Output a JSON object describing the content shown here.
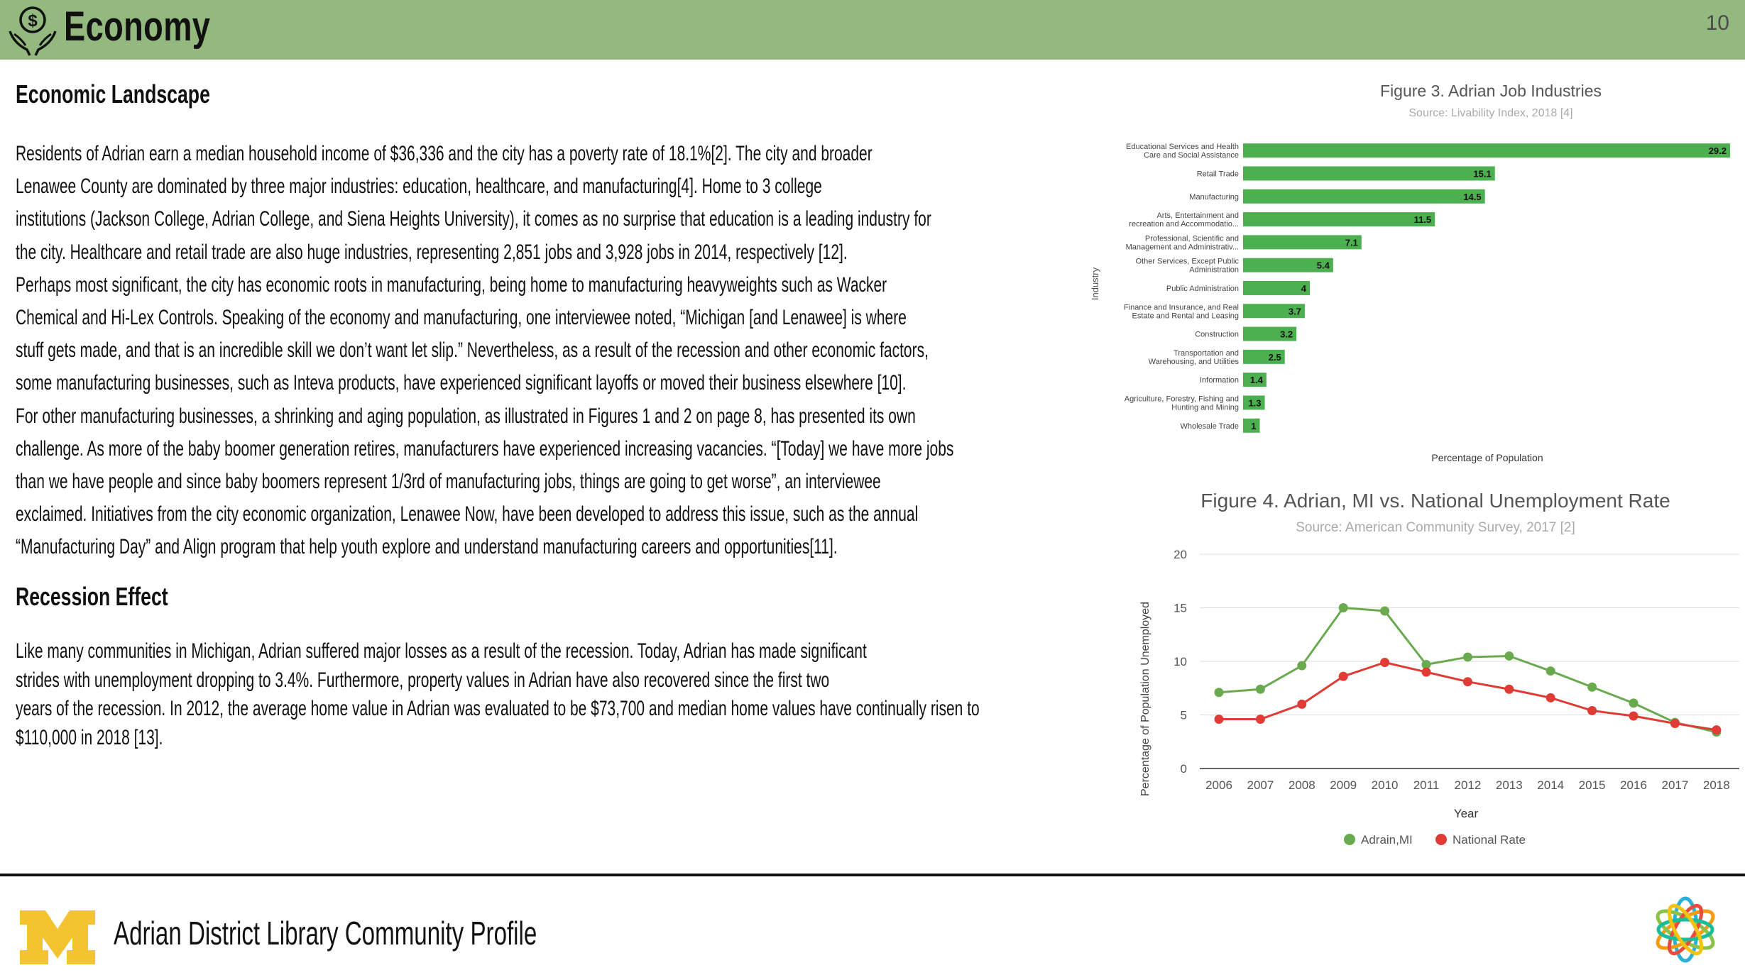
{
  "header": {
    "title": "Economy",
    "page_number": "10",
    "icon": "money-hands-icon"
  },
  "sections": {
    "economic_landscape": {
      "heading": "Economic Landscape",
      "paragraph": "Residents of Adrian earn a median household income of $36,336 and the city has a poverty rate of 18.1%[2].  The city and broader\nLenawee County are dominated by three major industries: education, healthcare, and manufacturing[4]. Home to 3 college\ninstitutions (Jackson College, Adrian College, and Siena Heights University), it comes as no surprise that education is a leading industry for\nthe city.  Healthcare and retail trade are also huge industries, representing 2,851 jobs and 3,928 jobs in 2014, respectively [12].\nPerhaps most significant, the city has economic roots in manufacturing, being home to manufacturing heavyweights such as Wacker\nChemical and Hi-Lex Controls. Speaking of the economy and manufacturing, one interviewee noted, “Michigan [and Lenawee] is where\nstuff gets made, and that is an incredible skill we don’t want let slip.”  Nevertheless, as a result of the recession and other economic factors,\nsome manufacturing businesses, such as Inteva products, have experienced significant layoffs or moved their business elsewhere [10].\nFor other manufacturing businesses, a shrinking and aging population, as illustrated in Figures 1 and 2 on page 8, has presented its own\nchallenge. As more of the baby boomer generation retires, manufacturers have experienced increasing vacancies.  “[Today] we have more jobs\nthan we have people and since baby boomers represent 1/3rd of manufacturing jobs, things are going to get worse”, an interviewee\nexclaimed. Initiatives from the city economic organization, Lenawee Now, have been developed to address this issue, such as the annual\n“Manufacturing Day” and Align program that help youth explore and understand manufacturing careers and opportunities[11]."
    },
    "recession_effect": {
      "heading": "Recession Effect",
      "paragraph": "Like many communities in Michigan, Adrian suffered major losses as a result of the recession. Today, Adrian has made significant\nstrides with unemployment dropping to 3.4%.  Furthermore, property values in Adrian have also recovered since the first two\nyears of the recession.  In 2012, the average home value in Adrian was evaluated to be $73,700 and median home values have continually risen to\n$110,000 in 2018 [13]."
    }
  },
  "chart_data": [
    {
      "type": "bar",
      "orientation": "horizontal",
      "title": "Figure 3. Adrian Job Industries",
      "subtitle": "Source: Livability Index, 2018 [4]",
      "xlabel": "Percentage of Population",
      "ylabel": "Industry",
      "color": "#4caf50",
      "xlim": [
        0,
        29.2
      ],
      "categories": [
        [
          "Educational Services and Health",
          "Care and Social Assistance"
        ],
        [
          "Retail Trade"
        ],
        [
          "Manufacturing"
        ],
        [
          "Arts, Entertainment and",
          "recreation and Accommodatio..."
        ],
        [
          "Professional, Scientific and",
          "Management and Administrativ..."
        ],
        [
          "Other Services, Except Public",
          "Administration"
        ],
        [
          "Public Administration"
        ],
        [
          "Finance and Insurance, and Real",
          "Estate and Rental and Leasing"
        ],
        [
          "Construction"
        ],
        [
          "Transportation and",
          "Warehousing, and Utilities"
        ],
        [
          "Information"
        ],
        [
          "Agriculture, Forestry, Fishing and",
          "Hunting and Mining"
        ],
        [
          "Wholesale Trade"
        ]
      ],
      "values": [
        29.2,
        15.1,
        14.5,
        11.5,
        7.1,
        5.4,
        4,
        3.7,
        3.2,
        2.5,
        1.4,
        1.3,
        1
      ],
      "data_labels": [
        "29.2",
        "15.1",
        "14.5",
        "11.5",
        "7.1",
        "5.4",
        "4",
        "3.7",
        "3.2",
        "2.5",
        "1.4",
        "1.3",
        "1"
      ]
    },
    {
      "type": "line",
      "title": "Figure 4. Adrian, MI vs. National Unemployment Rate",
      "subtitle": "Source: American Community Survey, 2017 [2]",
      "xlabel": "Year",
      "ylabel": "Percentage of Population Unemployed",
      "ylim": [
        0,
        20
      ],
      "yticks": [
        "0",
        "5",
        "10",
        "15",
        "20"
      ],
      "grid": true,
      "legend_position": "bottom",
      "x": [
        "2006",
        "2007",
        "2008",
        "2009",
        "2010",
        "2011",
        "2012",
        "2013",
        "2014",
        "2015",
        "2016",
        "2017",
        "2018"
      ],
      "series": [
        {
          "name": "Adrain,MI",
          "color": "#6aaa4f",
          "values": [
            7.1,
            7.4,
            9.6,
            15.0,
            14.7,
            9.7,
            10.4,
            10.5,
            9.1,
            7.6,
            6.1,
            4.3,
            3.4
          ]
        },
        {
          "name": "National Rate",
          "color": "#e03b35",
          "values": [
            4.6,
            4.6,
            6.0,
            8.6,
            9.9,
            9.0,
            8.1,
            7.4,
            6.6,
            5.4,
            4.9,
            4.2,
            3.6
          ]
        }
      ]
    }
  ],
  "footer": {
    "title": "Adrian District Library Community Profile",
    "left_logo": "block-m-logo",
    "right_logo": "flower-logo"
  }
}
